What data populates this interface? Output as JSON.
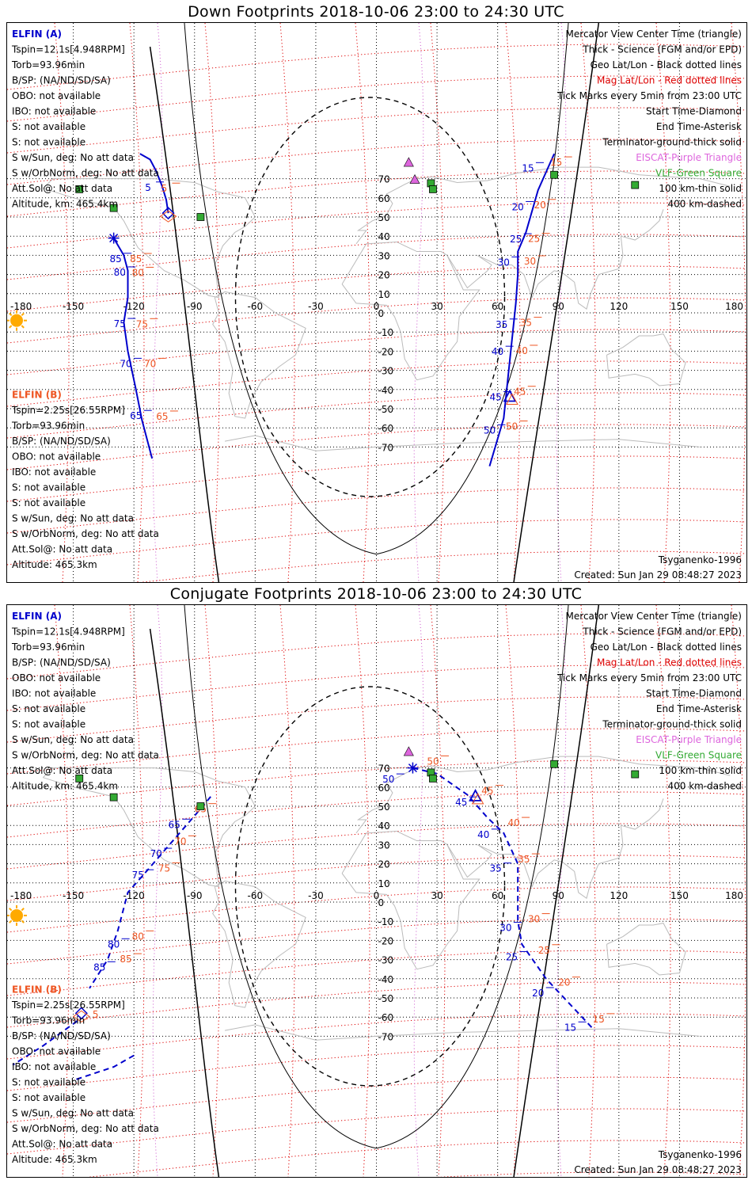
{
  "colors": {
    "elfin_a": "#0000cc",
    "elfin_b": "#ee5522",
    "mag_grid": "#dd0000",
    "geo_grid": "#000000",
    "eiscat": "#dd66dd",
    "vlf": "#33aa33",
    "sun": "#ffaa00"
  },
  "icons": {
    "sun": "sun-icon",
    "eiscat": "purple-triangle-icon",
    "vlf": "green-square-icon"
  },
  "panels": [
    {
      "title": "Down Footprints 2018-10-06 23:00 to 24:30 UTC",
      "elfin_a": {
        "name": "ELFIN (A)",
        "lines": [
          "Tspin=12.1s[4.948RPM]",
          "Torb=93.96min",
          "B/SP: (NA/ND/SD/SA)",
          "OBO: not available",
          "IBO: not available",
          "S: not available",
          "S: not available",
          "S w/Sun, deg: No att data",
          "S w/OrbNorm, deg: No att data",
          "Att.Sol@: No att data",
          "Altitude, km: 465.4km"
        ]
      },
      "elfin_b": {
        "name": "ELFIN (B)",
        "lines": [
          "Tspin=2.25s[26.55RPM]",
          "Torb=93.96min",
          "B/SP: (NA/ND/SD/SA)",
          "OBO: not available",
          "IBO: not available",
          "S: not available",
          "S: not available",
          "S w/Sun, deg: No att data",
          "S w/OrbNorm, deg: No att data",
          "Att.Sol@: No att data",
          "Altitude: 465.3km"
        ]
      },
      "legend": [
        {
          "text": "Mercator View Center Time (triangle)",
          "color": "#000000"
        },
        {
          "text": "Thick - Science (FGM and/or EPD)",
          "color": "#000000"
        },
        {
          "text": "Geo Lat/Lon - Black dotted lines",
          "color": "#000000"
        },
        {
          "text": "Mag Lat/Lon - Red dotted lines",
          "color": "#dd0000"
        },
        {
          "text": "Tick Marks every 5min from 23:00 UTC",
          "color": "#000000"
        },
        {
          "text": "Start Time-Diamond",
          "color": "#000000"
        },
        {
          "text": "End Time-Asterisk",
          "color": "#000000"
        },
        {
          "text": "Terminator-ground-thick solid",
          "color": "#000000"
        },
        {
          "text": "EISCAT-Purple Triangle",
          "color": "#dd66dd"
        },
        {
          "text": "VLF-Green Square",
          "color": "#33aa33"
        },
        {
          "text": "100 km-thin solid",
          "color": "#000000"
        },
        {
          "text": "400 km-dashed",
          "color": "#000000"
        }
      ],
      "model": "Tsyganenko-1996",
      "created": "Created: Sun Jan 29 08:48:27 2023",
      "lon_ticks": [
        "-180",
        "-150",
        "-120",
        "-90",
        "-60",
        "-30",
        "0",
        "30",
        "60",
        "90",
        "120",
        "150",
        "180"
      ],
      "lat_ticks": [
        "70",
        "60",
        "50",
        "40",
        "30",
        "20",
        "10",
        "0",
        "-10",
        "-20",
        "-30",
        "-40",
        "-50",
        "-60",
        "-70"
      ],
      "track_a": {
        "type": "solid",
        "segments": [
          [
            [
              -117,
              83
            ],
            [
              -112,
              80
            ],
            [
              -109,
              74
            ],
            [
              -106,
              66
            ],
            [
              -104,
              59
            ],
            [
              -103,
              52
            ]
          ],
          [
            [
              -130,
              39
            ],
            [
              -125,
              30
            ],
            [
              -123,
              22
            ],
            [
              -123,
              8
            ],
            [
              -125,
              -5
            ],
            [
              -123,
              -20
            ],
            [
              -119,
              -40
            ],
            [
              -116,
              -56
            ],
            [
              -111,
              -76
            ]
          ]
        ],
        "labels": [
          {
            "t": "5",
            "lon": -113,
            "lat": 65.8
          },
          {
            "t": "85",
            "lon": -129,
            "lat": 28.6
          },
          {
            "t": "80",
            "lon": -127,
            "lat": 21.5
          },
          {
            "t": "75",
            "lon": -127,
            "lat": -5.4
          },
          {
            "t": "70",
            "lon": -124,
            "lat": -26.2
          },
          {
            "t": "65",
            "lon": -119,
            "lat": -53.4
          }
        ]
      },
      "track_b": {
        "labels": [
          {
            "t": "5",
            "lon": -105,
            "lat": 65.2
          },
          {
            "t": "85",
            "lon": -119,
            "lat": 28.5
          },
          {
            "t": "80",
            "lon": -118,
            "lat": 21.3
          },
          {
            "t": "75",
            "lon": -116,
            "lat": -5.5
          },
          {
            "t": "70",
            "lon": -112,
            "lat": -26.2
          },
          {
            "t": "65",
            "lon": -106,
            "lat": -53.7
          }
        ]
      },
      "track_a2": {
        "type": "solid",
        "segments": [
          [
            [
              88,
              83
            ],
            [
              80,
              64
            ],
            [
              74,
              42
            ],
            [
              70,
              32
            ],
            [
              70,
              20
            ],
            [
              69,
              5
            ],
            [
              66,
              -25
            ],
            [
              63,
              -55
            ],
            [
              56,
              -80
            ]
          ]
        ],
        "labels": [
          {
            "t": "15",
            "lon": 75,
            "lat": 75.9
          },
          {
            "t": "20",
            "lon": 70,
            "lat": 55.6
          },
          {
            "t": "25",
            "lon": 69,
            "lat": 38.8
          },
          {
            "t": "30",
            "lon": 63,
            "lat": 26.7
          },
          {
            "t": "35",
            "lon": 62,
            "lat": -5.7
          },
          {
            "t": "40",
            "lon": 60,
            "lat": -19.9
          },
          {
            "t": "45",
            "lon": 59,
            "lat": -43.6
          },
          {
            "t": "50",
            "lon": 56,
            "lat": -60.9
          }
        ]
      },
      "track_b2": {
        "labels": [
          {
            "t": "15",
            "lon": 89,
            "lat": 78.9
          },
          {
            "t": "20",
            "lon": 81,
            "lat": 56.7
          },
          {
            "t": "25",
            "lon": 78,
            "lat": 39.0
          },
          {
            "t": "30",
            "lon": 76,
            "lat": 27.3
          },
          {
            "t": "35",
            "lon": 74,
            "lat": -4.8
          },
          {
            "t": "40",
            "lon": 72,
            "lat": -19.4
          },
          {
            "t": "45",
            "lon": 71,
            "lat": -40.8
          },
          {
            "t": "50",
            "lon": 67,
            "lat": -58.9
          }
        ]
      },
      "sun": {
        "lon": -183,
        "lat": -4
      },
      "eiscat": [
        {
          "lon": 16,
          "lat": 78.5
        },
        {
          "lon": 19,
          "lat": 69.6
        }
      ],
      "vlf": [
        {
          "lon": -147,
          "lat": 64.5
        },
        {
          "lon": -130,
          "lat": 54.7
        },
        {
          "lon": -87,
          "lat": 50.0
        },
        {
          "lon": 27,
          "lat": 67.6
        },
        {
          "lon": 28,
          "lat": 64.5
        },
        {
          "lon": 88,
          "lat": 72.0
        },
        {
          "lon": 128,
          "lat": 66.7
        }
      ],
      "start_marker": {
        "lon": -103,
        "lat": 52
      },
      "end_marker": {
        "lon": -130,
        "lat": 39
      },
      "center_triangle": {
        "lon": 66,
        "lat": -44
      }
    },
    {
      "title": "Conjugate Footprints 2018-10-06 23:00 to 24:30 UTC",
      "elfin_a": {
        "name": "ELFIN (A)",
        "lines": [
          "Tspin=12.1s[4.948RPM]",
          "Torb=93.96min",
          "B/SP: (NA/ND/SD/SA)",
          "OBO: not available",
          "IBO: not available",
          "S: not available",
          "S: not available",
          "S w/Sun, deg: No att data",
          "S w/OrbNorm, deg: No att data",
          "Att.Sol@: No att data",
          "Altitude, km: 465.4km"
        ]
      },
      "elfin_b": {
        "name": "ELFIN (B)",
        "lines": [
          "Tspin=2.25s[26.55RPM]",
          "Torb=93.96min",
          "B/SP: (NA/ND/SD/SA)",
          "OBO: not available",
          "IBO: not available",
          "S: not available",
          "S: not available",
          "S w/Sun, deg: No att data",
          "S w/OrbNorm, deg: No att data",
          "Att.Sol@: No att data",
          "Altitude: 465.3km"
        ]
      },
      "legend": [
        {
          "text": "Mercator View Center Time (triangle)",
          "color": "#000000"
        },
        {
          "text": "Thick - Science (FGM and/or EPD)",
          "color": "#000000"
        },
        {
          "text": "Geo Lat/Lon - Black dotted lines",
          "color": "#000000"
        },
        {
          "text": "Mag Lat/Lon - Red dotted lines",
          "color": "#dd0000"
        },
        {
          "text": "Tick Marks every 5min from 23:00 UTC",
          "color": "#000000"
        },
        {
          "text": "Start Time-Diamond",
          "color": "#000000"
        },
        {
          "text": "End Time-Asterisk",
          "color": "#000000"
        },
        {
          "text": "Terminator-ground-thick solid",
          "color": "#000000"
        },
        {
          "text": "EISCAT-Purple Triangle",
          "color": "#dd66dd"
        },
        {
          "text": "VLF-Green Square",
          "color": "#33aa33"
        },
        {
          "text": "100 km-thin solid",
          "color": "#000000"
        },
        {
          "text": "400 km-dashed",
          "color": "#000000"
        }
      ],
      "model": "Tsyganenko-1996",
      "created": "Created: Sun Jan 29 08:48:27 2023",
      "lon_ticks": [
        "-180",
        "-150",
        "-120",
        "-90",
        "-60",
        "-30",
        "0",
        "30",
        "60",
        "90",
        "120",
        "150",
        "180"
      ],
      "lat_ticks": [
        "70",
        "60",
        "50",
        "40",
        "30",
        "20",
        "10",
        "0",
        "-10",
        "-20",
        "-30",
        "-40",
        "-50",
        "-60",
        "-70"
      ],
      "track_a": {
        "type": "dashed",
        "segments": [
          [
            [
              -82,
              55
            ],
            [
              -90,
              45
            ],
            [
              -104,
              28
            ],
            [
              -113,
              17
            ],
            [
              -123,
              5
            ],
            [
              -128,
              -15
            ],
            [
              -133,
              -30
            ],
            [
              -142,
              -45
            ]
          ],
          [
            [
              -120,
              -80
            ],
            [
              -130,
              -86
            ],
            [
              -150,
              -93
            ]
          ]
        ],
        "labels": [
          {
            "t": "65",
            "lon": -100,
            "lat": 40.8
          },
          {
            "t": "70",
            "lon": -109,
            "lat": 25.6
          },
          {
            "t": "75",
            "lon": -118,
            "lat": 14.4
          },
          {
            "t": "80",
            "lon": -130,
            "lat": -21.6
          },
          {
            "t": "85",
            "lon": -137,
            "lat": -33.6
          }
        ]
      },
      "track_b": {
        "labels": [
          {
            "t": "65",
            "lon": -87,
            "lat": 48.9
          },
          {
            "t": "70",
            "lon": -97,
            "lat": 32.1
          },
          {
            "t": "75",
            "lon": -105,
            "lat": 18.0
          },
          {
            "t": "80",
            "lon": -118,
            "lat": -17.5
          },
          {
            "t": "85",
            "lon": -124,
            "lat": -29.4
          }
        ]
      },
      "track_a2": {
        "type": "dashed",
        "segments": [
          [
            [
              18,
              70
            ],
            [
              30,
              67
            ],
            [
              45,
              56
            ],
            [
              55,
              44
            ],
            [
              63,
              36
            ],
            [
              70,
              20
            ],
            [
              70,
              -10
            ],
            [
              72,
              -22
            ],
            [
              84,
              -40
            ],
            [
              100,
              -58
            ],
            [
              108,
              -67
            ]
          ]
        ],
        "labels": [
          {
            "t": "50",
            "lon": 6,
            "lat": 64.4
          },
          {
            "t": "45",
            "lon": 42,
            "lat": 52.4
          },
          {
            "t": "40",
            "lon": 53,
            "lat": 35.6
          },
          {
            "t": "35",
            "lon": 59,
            "lat": 17.9
          },
          {
            "t": "30",
            "lon": 64,
            "lat": -13.0
          },
          {
            "t": "25",
            "lon": 67,
            "lat": -28.3
          },
          {
            "t": "20",
            "lon": 80,
            "lat": -47.1
          },
          {
            "t": "15",
            "lon": 96,
            "lat": -65.0
          }
        ]
      },
      "track_b2": {
        "labels": [
          {
            "t": "50",
            "lon": 28,
            "lat": 73.8
          },
          {
            "t": "45",
            "lon": 55,
            "lat": 58.4
          },
          {
            "t": "40",
            "lon": 68,
            "lat": 41.7
          },
          {
            "t": "35",
            "lon": 73,
            "lat": 22.7
          },
          {
            "t": "30",
            "lon": 78,
            "lat": -8.5
          },
          {
            "t": "25",
            "lon": 83,
            "lat": -24.7
          },
          {
            "t": "20",
            "lon": 93,
            "lat": -41.6
          },
          {
            "t": "15",
            "lon": 110,
            "lat": -60.7
          }
        ]
      },
      "b_extra": {
        "segments": [
          [
            [
              -148,
              -62
            ],
            [
              -165,
              -75
            ],
            [
              -180,
              -85
            ]
          ]
        ],
        "label": {
          "t": "5",
          "lon": -139,
          "lat": -58.2
        }
      },
      "sun": {
        "lon": -183,
        "lat": -7
      },
      "eiscat": [
        {
          "lon": 16,
          "lat": 78.5
        }
      ],
      "vlf": [
        {
          "lon": -147,
          "lat": 64.5
        },
        {
          "lon": -130,
          "lat": 54.7
        },
        {
          "lon": -87,
          "lat": 50.0
        },
        {
          "lon": 27,
          "lat": 67.6
        },
        {
          "lon": 28,
          "lat": 64.5
        },
        {
          "lon": 88,
          "lat": 72.0
        },
        {
          "lon": 128,
          "lat": 66.7
        }
      ],
      "start_marker": {
        "lon": -146,
        "lat": -58
      },
      "end_marker": {
        "lon": 18,
        "lat": 70
      },
      "center_triangle": {
        "lon": 49,
        "lat": 55
      }
    }
  ]
}
